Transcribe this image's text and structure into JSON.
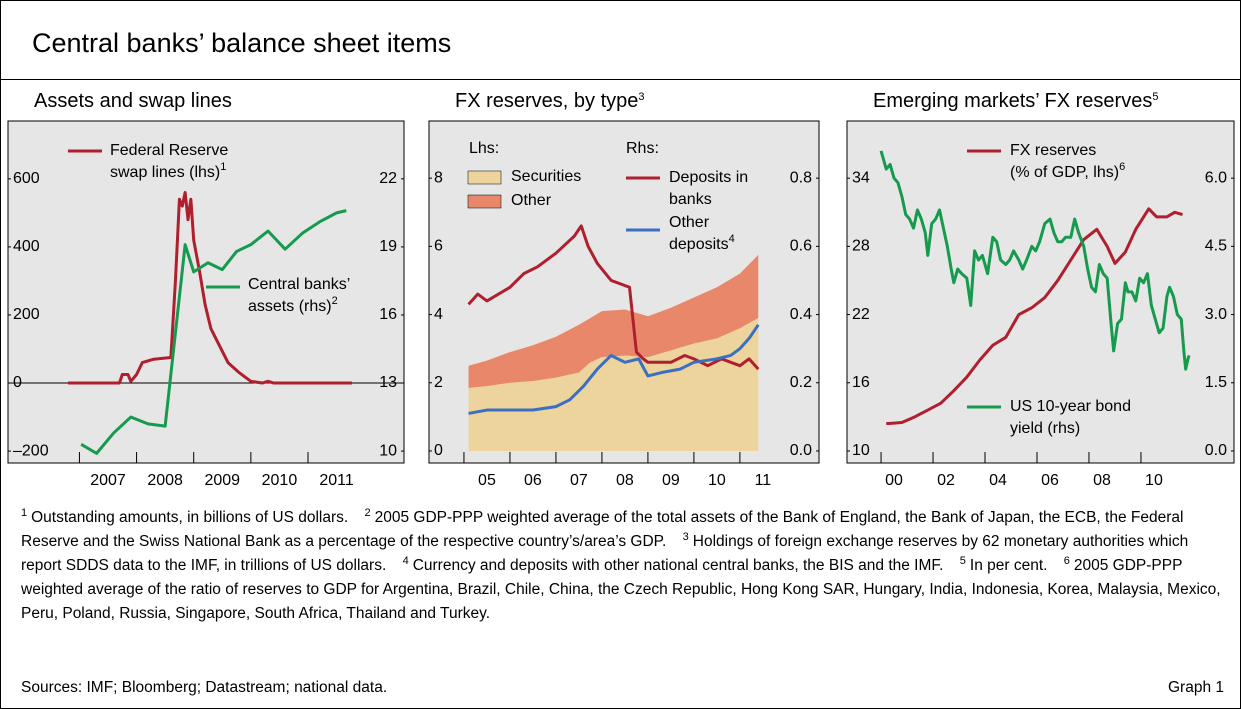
{
  "title": "Central banks’ balance sheet items",
  "chart_data": [
    {
      "type": "line",
      "title": "Assets and swap lines",
      "xlim": [
        2005.75,
        2012.68
      ],
      "xticks": [
        2007,
        2008,
        2009,
        2010,
        2011
      ],
      "ylim": [
        -235,
        770
      ],
      "yticks": [
        {
          "value": -200,
          "label": "–200"
        },
        0,
        200,
        400,
        600
      ],
      "y2lim": [
        9.475,
        24.55
      ],
      "y2ticks": [
        10,
        13,
        16,
        19,
        22
      ],
      "zero_line": true,
      "series": [
        {
          "name": "Federal Reserve swap lines (lhs)",
          "note": "1",
          "color": "#b01f2e",
          "x": [
            2006.8,
            2007.7,
            2007.75,
            2007.85,
            2007.9,
            2008.0,
            2008.1,
            2008.3,
            2008.6,
            2008.68,
            2008.75,
            2008.8,
            2008.85,
            2008.9,
            2008.95,
            2009.0,
            2009.1,
            2009.2,
            2009.3,
            2009.45,
            2009.6,
            2009.8,
            2010.0,
            2010.2,
            2010.3,
            2010.4,
            2011.77
          ],
          "values": [
            0,
            0,
            25,
            25,
            5,
            25,
            60,
            70,
            75,
            300,
            540,
            520,
            560,
            480,
            540,
            420,
            330,
            230,
            160,
            110,
            60,
            30,
            5,
            0,
            5,
            0,
            0
          ]
        },
        {
          "name": "Central banks’ assets (rhs)",
          "note": "2",
          "color": "#159a4e",
          "axis": "y2",
          "x": [
            2007.03,
            2007.3,
            2007.6,
            2007.9,
            2008.2,
            2008.5,
            2008.85,
            2009.0,
            2009.25,
            2009.5,
            2009.75,
            2010.0,
            2010.3,
            2010.6,
            2010.9,
            2011.2,
            2011.5,
            2011.67
          ],
          "values": [
            10.3,
            9.9,
            10.8,
            11.5,
            11.2,
            11.1,
            19.1,
            17.9,
            18.3,
            18.0,
            18.8,
            19.1,
            19.7,
            18.9,
            19.6,
            20.1,
            20.5,
            20.6
          ]
        }
      ]
    },
    {
      "type": "area",
      "title": "FX reserves, by type",
      "title_note": "3",
      "lhs_label": "Lhs:",
      "rhs_label": "Rhs:",
      "xlim": [
        2004.24,
        2012.72
      ],
      "xticks": [
        {
          "value": 2005,
          "label": "05"
        },
        {
          "value": 2006,
          "label": "06"
        },
        {
          "value": 2007,
          "label": "07"
        },
        {
          "value": 2008,
          "label": "08"
        },
        {
          "value": 2009,
          "label": "09"
        },
        {
          "value": 2010,
          "label": "10"
        },
        {
          "value": 2011,
          "label": "11"
        }
      ],
      "ylim": [
        -0.353,
        9.676
      ],
      "yticks": [
        0,
        2,
        4,
        6,
        8
      ],
      "y2lim": [
        -0.0353,
        0.9676
      ],
      "y2ticks": [
        {
          "value": 0,
          "label": "0.0"
        },
        0.2,
        0.4,
        0.6,
        0.8
      ],
      "series": [
        {
          "name": "Securities",
          "color": "#ecd49c",
          "x": [
            2005.1,
            2005.5,
            2006.0,
            2006.5,
            2007.0,
            2007.5,
            2007.75,
            2008.0,
            2008.5,
            2009.0,
            2009.5,
            2010.0,
            2010.5,
            2011.0,
            2011.4
          ],
          "values": [
            1.85,
            1.9,
            2.0,
            2.05,
            2.15,
            2.3,
            2.6,
            2.75,
            2.8,
            2.75,
            2.95,
            3.15,
            3.3,
            3.6,
            3.9
          ]
        },
        {
          "name": "Other",
          "color": "#e8876a",
          "x": [
            2005.1,
            2005.5,
            2006.0,
            2006.5,
            2007.0,
            2007.5,
            2007.75,
            2008.0,
            2008.5,
            2009.0,
            2009.5,
            2010.0,
            2010.5,
            2011.0,
            2011.4
          ],
          "values": [
            0.65,
            0.75,
            0.9,
            1.05,
            1.2,
            1.4,
            1.3,
            1.35,
            1.35,
            1.2,
            1.25,
            1.35,
            1.5,
            1.6,
            1.85
          ]
        },
        {
          "name": "Deposits in banks",
          "type": "line",
          "axis": "y2",
          "color": "#b01f2e",
          "x": [
            2005.1,
            2005.3,
            2005.5,
            2006.0,
            2006.3,
            2006.6,
            2007.0,
            2007.4,
            2007.55,
            2007.7,
            2007.9,
            2008.2,
            2008.6,
            2008.75,
            2008.9,
            2009.0,
            2009.5,
            2009.8,
            2010.0,
            2010.3,
            2010.6,
            2011.0,
            2011.2,
            2011.4
          ],
          "values": [
            0.43,
            0.46,
            0.44,
            0.48,
            0.52,
            0.54,
            0.58,
            0.63,
            0.66,
            0.6,
            0.55,
            0.5,
            0.48,
            0.29,
            0.27,
            0.26,
            0.26,
            0.28,
            0.27,
            0.25,
            0.27,
            0.25,
            0.27,
            0.24
          ]
        },
        {
          "name": "Other deposits",
          "note": "4",
          "type": "line",
          "axis": "y2",
          "color": "#3b6fc2",
          "x": [
            2005.1,
            2005.5,
            2006.0,
            2006.5,
            2007.0,
            2007.3,
            2007.6,
            2007.9,
            2008.2,
            2008.5,
            2008.8,
            2009.0,
            2009.3,
            2009.7,
            2010.0,
            2010.5,
            2010.8,
            2011.0,
            2011.2,
            2011.4
          ],
          "values": [
            0.11,
            0.12,
            0.12,
            0.12,
            0.13,
            0.15,
            0.19,
            0.24,
            0.28,
            0.26,
            0.27,
            0.22,
            0.23,
            0.24,
            0.26,
            0.27,
            0.28,
            0.3,
            0.33,
            0.37
          ]
        }
      ]
    },
    {
      "type": "line",
      "title": "Emerging markets’ FX reserves",
      "title_note": "5",
      "xlim": [
        1998.69,
        2013.58
      ],
      "xticks": [
        {
          "value": 2000,
          "label": "00"
        },
        {
          "value": 2002,
          "label": "02"
        },
        {
          "value": 2004,
          "label": "04"
        },
        {
          "value": 2006,
          "label": "06"
        },
        {
          "value": 2008,
          "label": "08"
        },
        {
          "value": 2010,
          "label": "10"
        }
      ],
      "ylim": [
        8.94,
        39.03
      ],
      "yticks": [
        10,
        16,
        22,
        28,
        34
      ],
      "y2lim": [
        -0.265,
        7.257
      ],
      "y2ticks": [
        {
          "value": 0,
          "label": "0.0"
        },
        1.5,
        {
          "value": 3,
          "label": "3.0"
        },
        4.5,
        {
          "value": 6,
          "label": "6.0"
        }
      ],
      "series": [
        {
          "name": "FX reserves (% of GDP, lhs)",
          "note": "6",
          "color": "#b01f2e",
          "x": [
            2000.2,
            2000.8,
            2001.3,
            2001.8,
            2002.3,
            2002.8,
            2003.3,
            2003.8,
            2004.3,
            2004.8,
            2005.3,
            2005.8,
            2006.3,
            2006.8,
            2007.3,
            2007.8,
            2008.3,
            2008.7,
            2009.0,
            2009.4,
            2009.8,
            2010.3,
            2010.6,
            2011.0,
            2011.3,
            2011.6
          ],
          "values": [
            12.4,
            12.5,
            13.0,
            13.6,
            14.2,
            15.3,
            16.5,
            18.0,
            19.3,
            20.0,
            22.0,
            22.6,
            23.5,
            25.0,
            26.8,
            28.6,
            29.5,
            28.0,
            26.5,
            27.5,
            29.5,
            31.3,
            30.6,
            30.6,
            31.0,
            30.8
          ]
        },
        {
          "name": "US 10-year bond yield (rhs)",
          "color": "#159a4e",
          "axis": "y2",
          "x": [
            2000.0,
            2000.1,
            2000.2,
            2000.35,
            2000.5,
            2000.65,
            2000.8,
            2000.95,
            2001.1,
            2001.25,
            2001.4,
            2001.55,
            2001.7,
            2001.8,
            2001.95,
            2002.1,
            2002.25,
            2002.4,
            2002.55,
            2002.7,
            2002.8,
            2002.95,
            2003.1,
            2003.3,
            2003.45,
            2003.6,
            2003.75,
            2003.9,
            2004.1,
            2004.3,
            2004.45,
            2004.6,
            2004.8,
            2004.95,
            2005.1,
            2005.3,
            2005.45,
            2005.6,
            2005.8,
            2005.95,
            2006.1,
            2006.3,
            2006.5,
            2006.65,
            2006.8,
            2006.95,
            2007.1,
            2007.3,
            2007.45,
            2007.6,
            2007.8,
            2007.95,
            2008.1,
            2008.25,
            2008.4,
            2008.55,
            2008.7,
            2008.85,
            2008.95,
            2009.1,
            2009.25,
            2009.4,
            2009.5,
            2009.65,
            2009.8,
            2009.95,
            2010.1,
            2010.25,
            2010.4,
            2010.55,
            2010.7,
            2010.85,
            2011.0,
            2011.1,
            2011.25,
            2011.4,
            2011.55,
            2011.65,
            2011.72,
            2011.8,
            2011.85
          ],
          "values": [
            6.6,
            6.4,
            6.2,
            6.3,
            6.0,
            5.9,
            5.6,
            5.2,
            5.1,
            4.9,
            5.3,
            5.1,
            4.8,
            4.3,
            5.0,
            5.1,
            5.3,
            4.9,
            4.5,
            4.0,
            3.7,
            4.0,
            3.9,
            3.8,
            3.2,
            4.4,
            4.2,
            4.3,
            3.9,
            4.7,
            4.6,
            4.2,
            4.1,
            4.2,
            4.4,
            4.2,
            4.0,
            4.2,
            4.5,
            4.4,
            4.6,
            5.0,
            5.1,
            4.8,
            4.6,
            4.6,
            4.7,
            4.7,
            5.1,
            4.8,
            4.5,
            4.0,
            3.6,
            3.5,
            4.1,
            3.9,
            3.8,
            2.8,
            2.2,
            2.8,
            2.9,
            3.7,
            3.5,
            3.5,
            3.3,
            3.8,
            3.7,
            3.9,
            3.2,
            2.9,
            2.6,
            2.7,
            3.4,
            3.6,
            3.4,
            3.0,
            2.9,
            2.2,
            1.8,
            2.0,
            2.1
          ]
        }
      ]
    }
  ],
  "footnotes": [
    {
      "marker": "1",
      "text": "Outstanding amounts, in billions of US dollars."
    },
    {
      "marker": "2",
      "text": "2005 GDP-PPP weighted average of the total assets of the Bank of England, the Bank of Japan, the ECB, the Federal Reserve and the Swiss National Bank as a percentage of the respective country’s/area’s GDP."
    },
    {
      "marker": "3",
      "text": "Holdings of foreign exchange reserves by 62 monetary authorities which report SDDS data to the IMF, in trillions of US dollars."
    },
    {
      "marker": "4",
      "text": "Currency and deposits with other national central banks, the BIS and the IMF."
    },
    {
      "marker": "5",
      "text": "In per cent."
    },
    {
      "marker": "6",
      "text": "2005 GDP-PPP weighted average of the ratio of reserves to GDP for Argentina, Brazil, Chile, China, the Czech Republic, Hong Kong SAR, Hungary, India, Indonesia, Korea, Malaysia, Mexico, Peru, Poland, Russia, Singapore, South Africa, Thailand and Turkey."
    }
  ],
  "sources": "Sources: IMF; Bloomberg; Datastream; national data.",
  "graph_label": "Graph 1"
}
